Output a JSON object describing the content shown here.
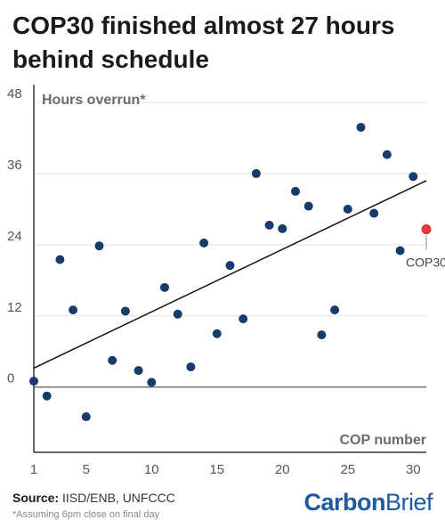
{
  "title": "COP30 finished almost 27 hours behind schedule",
  "source_label": "Source:",
  "source_text": "IISD/ENB, UNFCCC",
  "footnote": "*Assuming 6pm close on final day",
  "logo": {
    "part1": "Carbon",
    "part2": "Brief"
  },
  "colors": {
    "points": "#173c6b",
    "highlight": "#e53a34",
    "trend": "#111111",
    "grid": "#e3e3e3",
    "zero": "#777777"
  },
  "chart_data": {
    "type": "scatter",
    "title": "COP30 finished almost 27 hours behind schedule",
    "xlabel": "COP number",
    "ylabel": "Hours overrun*",
    "xlim": [
      1,
      31
    ],
    "ylim": [
      -11,
      51
    ],
    "xticks": [
      1,
      5,
      10,
      15,
      20,
      25,
      30
    ],
    "yticks": [
      0,
      12,
      24,
      36,
      48
    ],
    "grid": true,
    "series": [
      {
        "points": [
          {
            "x": 1,
            "y": 1
          },
          {
            "x": 2,
            "y": -1.5
          },
          {
            "x": 3,
            "y": 21.5
          },
          {
            "x": 4,
            "y": 13
          },
          {
            "x": 5,
            "y": -5
          },
          {
            "x": 6,
            "y": 23.8
          },
          {
            "x": 7,
            "y": 4.5
          },
          {
            "x": 8,
            "y": 12.8
          },
          {
            "x": 9,
            "y": 2.8
          },
          {
            "x": 10,
            "y": 0.8
          },
          {
            "x": 11,
            "y": 16.8
          },
          {
            "x": 12,
            "y": 12.3
          },
          {
            "x": 13,
            "y": 3.4
          },
          {
            "x": 14,
            "y": 24.3
          },
          {
            "x": 15,
            "y": 9
          },
          {
            "x": 16,
            "y": 20.5
          },
          {
            "x": 17,
            "y": 11.5
          },
          {
            "x": 18,
            "y": 36
          },
          {
            "x": 19,
            "y": 27.3
          },
          {
            "x": 20,
            "y": 26.7
          },
          {
            "x": 21,
            "y": 33
          },
          {
            "x": 22,
            "y": 30.5
          },
          {
            "x": 23,
            "y": 8.8
          },
          {
            "x": 24,
            "y": 13
          },
          {
            "x": 25,
            "y": 30
          },
          {
            "x": 26,
            "y": 43.8
          },
          {
            "x": 27,
            "y": 29.3
          },
          {
            "x": 28,
            "y": 39.2
          },
          {
            "x": 29,
            "y": 23
          },
          {
            "x": 30,
            "y": 35.5
          }
        ]
      },
      {
        "highlight": true,
        "points": [
          {
            "x": 31,
            "y": 26.6
          }
        ]
      }
    ],
    "trendline": {
      "x": [
        1,
        31
      ],
      "y": [
        3.2,
        34.8
      ]
    },
    "annotations": [
      {
        "text": "COP30",
        "x": 31,
        "y": 26.6
      }
    ]
  }
}
